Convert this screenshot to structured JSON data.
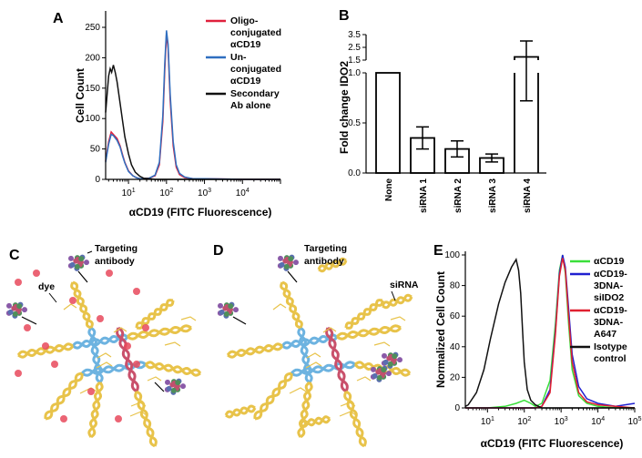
{
  "panels": {
    "A": "A",
    "B": "B",
    "C": "C",
    "D": "D",
    "E": "E"
  },
  "chart_data": [
    {
      "id": "A",
      "type": "line",
      "xlabel": "αCD19 (FITC Fluorescence)",
      "ylabel": "Cell Count",
      "x_scale": "log",
      "xlim": [
        2.5,
        100000
      ],
      "ylim": [
        0,
        265
      ],
      "xticks": [
        {
          "v": 10,
          "label": "10",
          "sup": "1"
        },
        {
          "v": 100,
          "label": "10",
          "sup": "2"
        },
        {
          "v": 1000,
          "label": "10",
          "sup": "3"
        },
        {
          "v": 10000,
          "label": "10",
          "sup": "4"
        }
      ],
      "yticks": [
        0,
        50,
        100,
        150,
        200,
        250
      ],
      "series": [
        {
          "name": "Oligo-conjugated αCD19",
          "legend_lines": [
            "Oligo-",
            "conjugated",
            "αCD19"
          ],
          "color": "#e0203c",
          "x": [
            2.5,
            3,
            3.5,
            4,
            5,
            6,
            7,
            8,
            10,
            13,
            16,
            20,
            25,
            35,
            50,
            65,
            80,
            90,
            100,
            110,
            125,
            150,
            180,
            220,
            300,
            500,
            1000,
            10000,
            100000
          ],
          "y": [
            30,
            62,
            78,
            74,
            67,
            55,
            40,
            28,
            14,
            6,
            3,
            1,
            1,
            2,
            6,
            24,
            95,
            178,
            240,
            215,
            130,
            55,
            20,
            8,
            3,
            1,
            1,
            0,
            0
          ]
        },
        {
          "name": "Un-conjugated αCD19",
          "legend_lines": [
            "Un-",
            "conjugated",
            "αCD19"
          ],
          "color": "#2f6fc0",
          "x": [
            2.5,
            3,
            3.5,
            4,
            5,
            6,
            7,
            8,
            10,
            13,
            16,
            20,
            25,
            35,
            50,
            65,
            80,
            90,
            100,
            110,
            125,
            150,
            180,
            220,
            300,
            500,
            1000,
            10000,
            100000
          ],
          "y": [
            28,
            58,
            74,
            72,
            64,
            53,
            38,
            27,
            13,
            6,
            3,
            1,
            1,
            2,
            7,
            28,
            105,
            190,
            245,
            222,
            140,
            62,
            24,
            10,
            4,
            1,
            1,
            0,
            0
          ]
        },
        {
          "name": "Secondary Ab alone",
          "legend_lines": [
            "Secondary",
            "Ab alone"
          ],
          "color": "#111111",
          "x": [
            2.5,
            3,
            3.3,
            3.6,
            4,
            4.5,
            5,
            6,
            7,
            8,
            10,
            12,
            15,
            20,
            25,
            35,
            50,
            100,
            1000,
            100000
          ],
          "y": [
            110,
            170,
            182,
            176,
            188,
            175,
            160,
            125,
            95,
            70,
            42,
            24,
            12,
            5,
            2,
            1,
            0,
            0,
            0,
            0
          ]
        }
      ]
    },
    {
      "id": "B",
      "type": "bar",
      "ylabel": "Fold change IDO2",
      "categories": [
        "None",
        "siRNA 1",
        "siRNA 2",
        "siRNA 3",
        "siRNA 4"
      ],
      "values": [
        1.0,
        0.35,
        0.24,
        0.15,
        1.75
      ],
      "error_low": [
        null,
        0.24,
        0.16,
        0.11,
        0.72
      ],
      "error_high": [
        null,
        0.46,
        0.32,
        0.19,
        3.0
      ],
      "y_axis_break": true,
      "ylim_lower": [
        0,
        1.0
      ],
      "ylim_upper": [
        1.5,
        3.5
      ],
      "yticks_lower": [
        "0.0",
        "0.5",
        "1.0"
      ],
      "yticks_upper": [
        "1.5",
        "2.5",
        "3.5"
      ]
    },
    {
      "id": "E",
      "type": "line",
      "xlabel": "αCD19 (FITC Fluorescence)",
      "ylabel": "Normalized Cell Count",
      "x_scale": "log",
      "xlim": [
        2.5,
        100000
      ],
      "ylim": [
        0,
        100
      ],
      "xticks": [
        {
          "v": 10,
          "label": "10",
          "sup": "1"
        },
        {
          "v": 100,
          "label": "10",
          "sup": "2"
        },
        {
          "v": 1000,
          "label": "10",
          "sup": "3"
        },
        {
          "v": 10000,
          "label": "10",
          "sup": "4"
        },
        {
          "v": 100000,
          "label": "10",
          "sup": "5"
        }
      ],
      "yticks": [
        0,
        20,
        40,
        60,
        80,
        100
      ],
      "series": [
        {
          "name": "αCD19",
          "legend_lines": [
            "αCD19"
          ],
          "color": "#3adf3a",
          "x": [
            2.5,
            10,
            30,
            60,
            100,
            150,
            200,
            300,
            500,
            700,
            900,
            1100,
            1300,
            1600,
            2000,
            3000,
            5000,
            10000,
            30000,
            100000
          ],
          "y": [
            0,
            0,
            1,
            3,
            5,
            3,
            1,
            3,
            18,
            55,
            90,
            100,
            88,
            55,
            25,
            8,
            3,
            1,
            0,
            0
          ]
        },
        {
          "name": "αCD19-3DNA-siIDO2",
          "legend_lines": [
            "αCD19-",
            "3DNA-",
            "siIDO2"
          ],
          "color": "#2020d0",
          "x": [
            2.5,
            10,
            30,
            100,
            200,
            300,
            500,
            700,
            900,
            1100,
            1300,
            1600,
            2000,
            3000,
            5000,
            10000,
            30000,
            100000
          ],
          "y": [
            0,
            0,
            0,
            0,
            0,
            1,
            12,
            50,
            88,
            100,
            92,
            65,
            35,
            14,
            6,
            3,
            1,
            3
          ]
        },
        {
          "name": "αCD19-3DNA-A647",
          "legend_lines": [
            "αCD19-",
            "3DNA-",
            "A647"
          ],
          "color": "#e02030",
          "x": [
            2.5,
            10,
            30,
            100,
            200,
            300,
            500,
            700,
            900,
            1100,
            1300,
            1600,
            2000,
            3000,
            5000,
            10000,
            30000,
            100000
          ],
          "y": [
            0,
            0,
            0,
            0,
            0,
            1,
            10,
            48,
            86,
            98,
            90,
            60,
            30,
            10,
            4,
            2,
            1,
            0
          ]
        },
        {
          "name": "Isotype control",
          "legend_lines": [
            "Isotype",
            " control"
          ],
          "color": "#111111",
          "x": [
            2.5,
            3,
            5,
            8,
            12,
            20,
            30,
            45,
            60,
            70,
            80,
            90,
            100,
            120,
            150,
            200,
            300,
            500,
            1000,
            100000
          ],
          "y": [
            1,
            2,
            10,
            25,
            45,
            68,
            82,
            92,
            97,
            90,
            75,
            50,
            30,
            12,
            5,
            2,
            0,
            0,
            0,
            0
          ]
        }
      ]
    }
  ],
  "diagram_C": {
    "labels": [
      "Targeting",
      "antibody",
      "dye"
    ]
  },
  "diagram_D": {
    "labels": [
      "Targeting",
      "antibody",
      "siRNA"
    ]
  }
}
